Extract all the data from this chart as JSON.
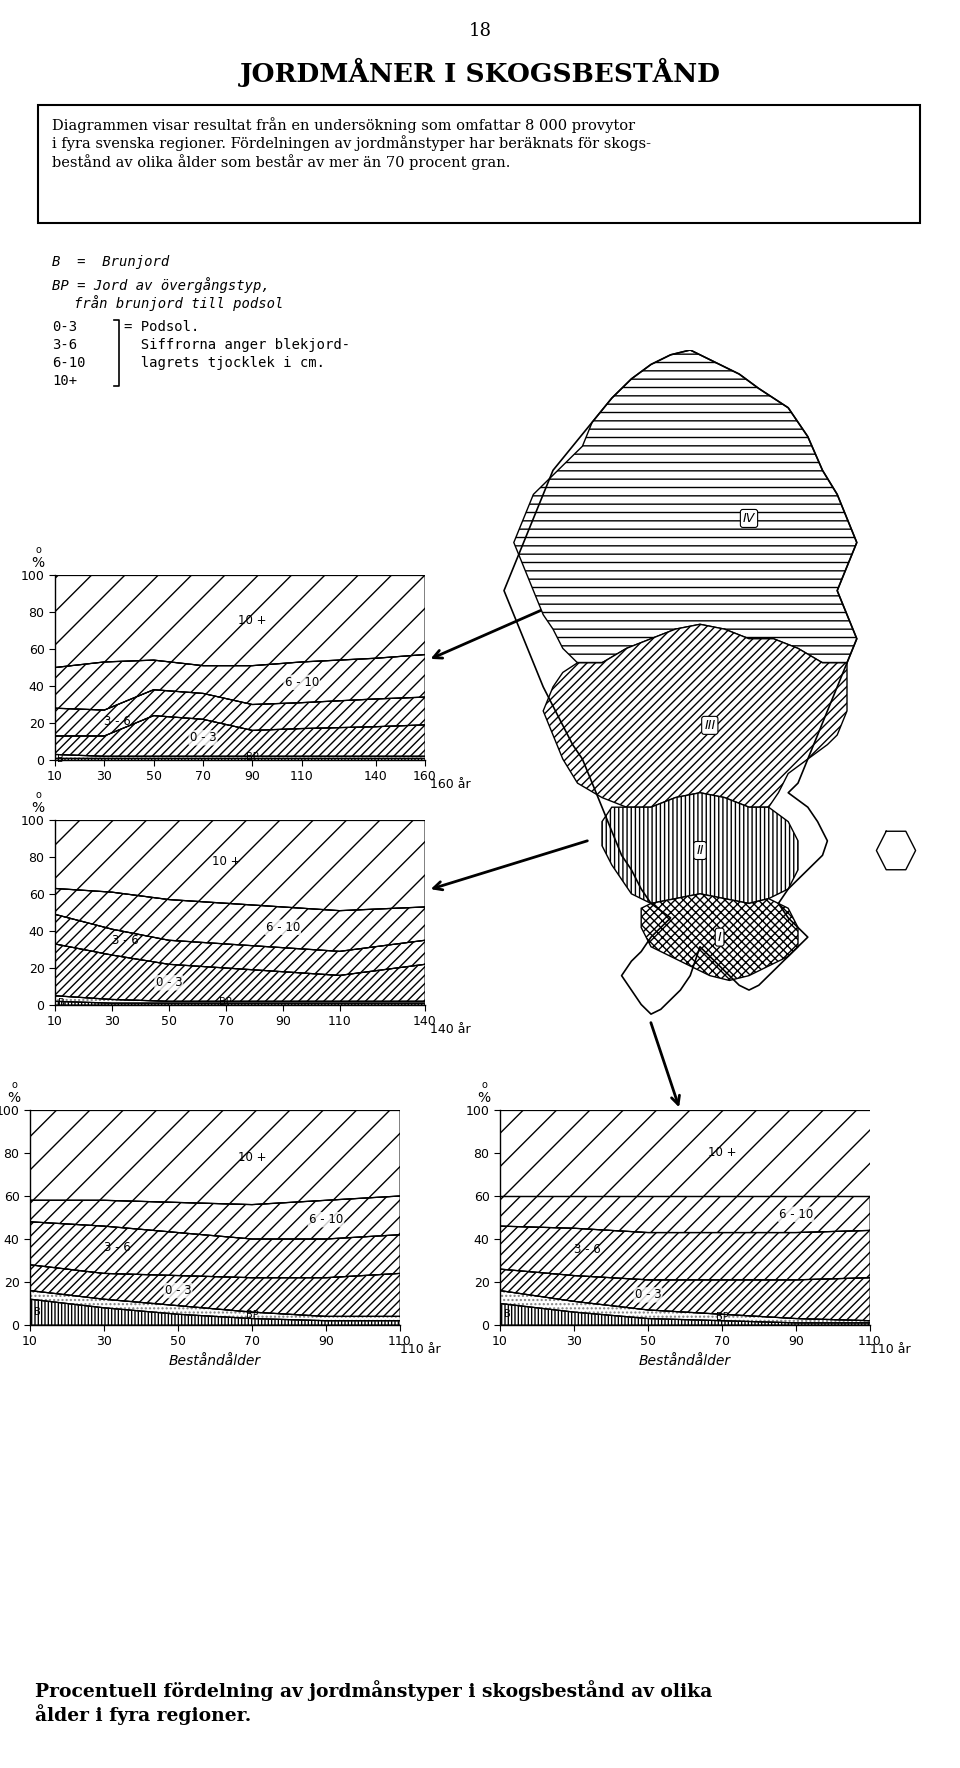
{
  "title": "JORDMÅNER I SKOGSBESTÅND",
  "page_number": "18",
  "box_text_line1": "Diagrammen visar resultat från en undersökning som omfattar 8 000 provytor",
  "box_text_line2": "i fyra svenska regioner. Fördelningen av jordmånstyper har beräknats för skogs-",
  "box_text_line3": "bestånd av olika ålder som består av mer än 70 procent gran.",
  "caption": "Procentuell fördelning av jordmånstyper i skogsbestånd av olika\nålder i fyra regioner.",
  "chart1_ages": [
    10,
    30,
    50,
    70,
    90,
    110,
    140,
    160
  ],
  "chart1_B": [
    1,
    1,
    1,
    1,
    1,
    1,
    1,
    1
  ],
  "chart1_BP": [
    2,
    1,
    1,
    1,
    1,
    1,
    1,
    1
  ],
  "chart1_03": [
    10,
    11,
    22,
    20,
    14,
    15,
    16,
    17
  ],
  "chart1_36": [
    15,
    14,
    14,
    14,
    14,
    14,
    15,
    15
  ],
  "chart1_610": [
    22,
    26,
    16,
    15,
    21,
    22,
    22,
    23
  ],
  "chart2_ages": [
    10,
    30,
    50,
    70,
    90,
    110,
    140
  ],
  "chart2_B": [
    2,
    1,
    1,
    1,
    1,
    1,
    1
  ],
  "chart2_BP": [
    3,
    2,
    1,
    1,
    1,
    1,
    1
  ],
  "chart2_03": [
    28,
    24,
    20,
    18,
    16,
    14,
    20
  ],
  "chart2_36": [
    16,
    14,
    13,
    13,
    13,
    13,
    13
  ],
  "chart2_610": [
    14,
    20,
    22,
    22,
    22,
    22,
    18
  ],
  "chart3_ages": [
    10,
    30,
    50,
    70,
    90,
    110
  ],
  "chart3_B": [
    12,
    8,
    5,
    3,
    2,
    2
  ],
  "chart3_BP": [
    4,
    4,
    4,
    3,
    2,
    2
  ],
  "chart3_03": [
    12,
    12,
    14,
    16,
    18,
    20
  ],
  "chart3_36": [
    20,
    22,
    20,
    18,
    18,
    18
  ],
  "chart3_610": [
    10,
    12,
    14,
    16,
    18,
    18
  ],
  "chart4_ages": [
    10,
    30,
    50,
    70,
    90,
    110
  ],
  "chart4_B": [
    10,
    6,
    3,
    2,
    1,
    1
  ],
  "chart4_BP": [
    6,
    5,
    4,
    3,
    2,
    1
  ],
  "chart4_03": [
    10,
    12,
    14,
    16,
    18,
    20
  ],
  "chart4_36": [
    20,
    22,
    22,
    22,
    22,
    22
  ],
  "chart4_610": [
    14,
    15,
    17,
    17,
    17,
    16
  ]
}
